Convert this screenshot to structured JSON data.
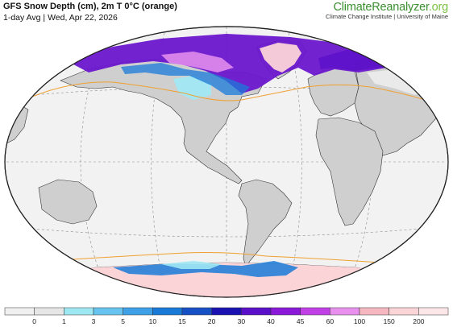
{
  "header": {
    "title": "GFS Snow Depth (cm), 2m T 0°C (orange)",
    "subtitle": "1-day Avg | Wed, Apr 22, 2026"
  },
  "brand": {
    "name_main": "ClimateReanalyzer",
    "name_suffix": ".org",
    "institute": "Climate Change Institute | University of Maine"
  },
  "map": {
    "projection": "Winkel Tripel",
    "ocean_color": "#f2f2f2",
    "land_color": "#cfcfcf",
    "freezing_line_color": "#f0a030"
  },
  "legend": {
    "labels": [
      "0",
      "1",
      "3",
      "5",
      "10",
      "15",
      "20",
      "30",
      "40",
      "45",
      "60",
      "100",
      "150",
      "200"
    ],
    "colors": [
      "#f0f0f0",
      "#e6e6e6",
      "#9ee8f4",
      "#66c4ee",
      "#3ea0e6",
      "#1a7ad8",
      "#1650c4",
      "#1a12b0",
      "#5a10c8",
      "#8a1ad8",
      "#c040e6",
      "#e890ee",
      "#f6b8c0",
      "#fbd4d8",
      "#fde6e8"
    ]
  }
}
